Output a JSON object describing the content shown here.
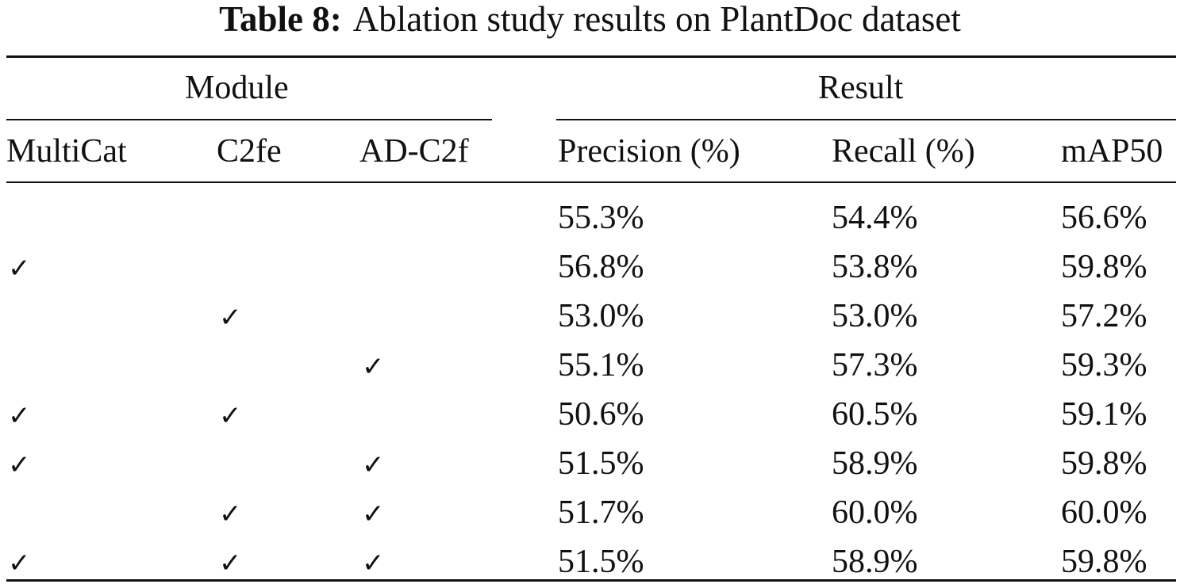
{
  "caption": {
    "label": "Table 8:",
    "text": "Ablation study results on PlantDoc dataset"
  },
  "groups": {
    "module": "Module",
    "result": "Result"
  },
  "columns": {
    "multicat": "MultiCat",
    "c2fe": "C2fe",
    "adc2f": "AD-C2f",
    "precision": "Precision (%)",
    "recall": "Recall (%)",
    "map50": "mAP50"
  },
  "check_glyph": "✓",
  "rows": [
    {
      "multicat": false,
      "c2fe": false,
      "adc2f": false,
      "precision": "55.3%",
      "recall": "54.4%",
      "map50": "56.6%"
    },
    {
      "multicat": true,
      "c2fe": false,
      "adc2f": false,
      "precision": "56.8%",
      "recall": "53.8%",
      "map50": "59.8%"
    },
    {
      "multicat": false,
      "c2fe": true,
      "adc2f": false,
      "precision": "53.0%",
      "recall": "53.0%",
      "map50": "57.2%"
    },
    {
      "multicat": false,
      "c2fe": false,
      "adc2f": true,
      "precision": "55.1%",
      "recall": "57.3%",
      "map50": "59.3%"
    },
    {
      "multicat": true,
      "c2fe": true,
      "adc2f": false,
      "precision": "50.6%",
      "recall": "60.5%",
      "map50": "59.1%"
    },
    {
      "multicat": true,
      "c2fe": false,
      "adc2f": true,
      "precision": "51.5%",
      "recall": "58.9%",
      "map50": "59.8%"
    },
    {
      "multicat": false,
      "c2fe": true,
      "adc2f": true,
      "precision": "51.7%",
      "recall": "60.0%",
      "map50": "60.0%"
    },
    {
      "multicat": true,
      "c2fe": true,
      "adc2f": true,
      "precision": "51.5%",
      "recall": "58.9%",
      "map50": "59.8%"
    }
  ]
}
